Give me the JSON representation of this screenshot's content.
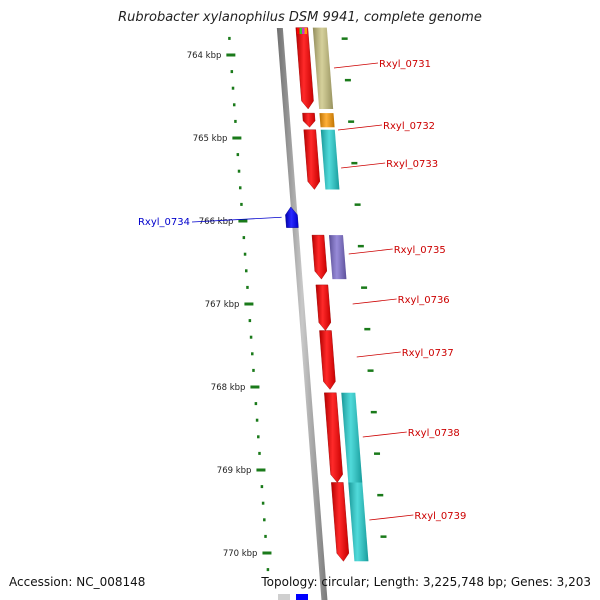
{
  "title": "Rubrobacter xylanophilus DSM 9941, complete genome",
  "footer": {
    "accession": "Accession: NC_008148",
    "summary": "Topology: circular; Length: 3,225,748 bp; Genes: 3,203"
  },
  "colors": {
    "forward_cds": "#ff0000",
    "reverse_cds": "#0000ff",
    "forward_label": "#cc0000",
    "reverse_label": "#0000cc",
    "tick": "#1a7a1a",
    "backbone": "#8a8a8a"
  },
  "ticks": [
    {
      "label": "764 kbp",
      "kbp": 764
    },
    {
      "label": "765 kbp",
      "kbp": 765
    },
    {
      "label": "766 kbp",
      "kbp": 766
    },
    {
      "label": "767 kbp",
      "kbp": 767
    },
    {
      "label": "768 kbp",
      "kbp": 768
    },
    {
      "label": "769 kbp",
      "kbp": 769
    },
    {
      "label": "770 kbp",
      "kbp": 770
    }
  ],
  "genes": [
    {
      "id": "Rxyl_0731",
      "strand": "+",
      "start_kbp": 763.67,
      "end_kbp": 764.65,
      "func_color": "#c9c27e"
    },
    {
      "id": "Rxyl_0732",
      "strand": "+",
      "start_kbp": 764.7,
      "end_kbp": 764.87,
      "func_color": "#ff9900"
    },
    {
      "id": "Rxyl_0733",
      "strand": "+",
      "start_kbp": 764.9,
      "end_kbp": 765.62,
      "func_color": "#1fcfcf"
    },
    {
      "id": "Rxyl_0734",
      "strand": "-",
      "start_kbp": 765.83,
      "end_kbp": 766.08,
      "func_color": ""
    },
    {
      "id": "Rxyl_0735",
      "strand": "+",
      "start_kbp": 766.17,
      "end_kbp": 766.7,
      "func_color": "#7a6acd"
    },
    {
      "id": "Rxyl_0736",
      "strand": "+",
      "start_kbp": 766.77,
      "end_kbp": 767.32,
      "func_color": ""
    },
    {
      "id": "Rxyl_0737",
      "strand": "+",
      "start_kbp": 767.32,
      "end_kbp": 768.03,
      "func_color": ""
    },
    {
      "id": "Rxyl_0738",
      "strand": "+",
      "start_kbp": 768.07,
      "end_kbp": 769.15,
      "func_color": "#1fcfcf"
    },
    {
      "id": "Rxyl_0739",
      "strand": "+",
      "start_kbp": 769.15,
      "end_kbp": 770.1,
      "func_color": "#1fcfcf"
    }
  ]
}
